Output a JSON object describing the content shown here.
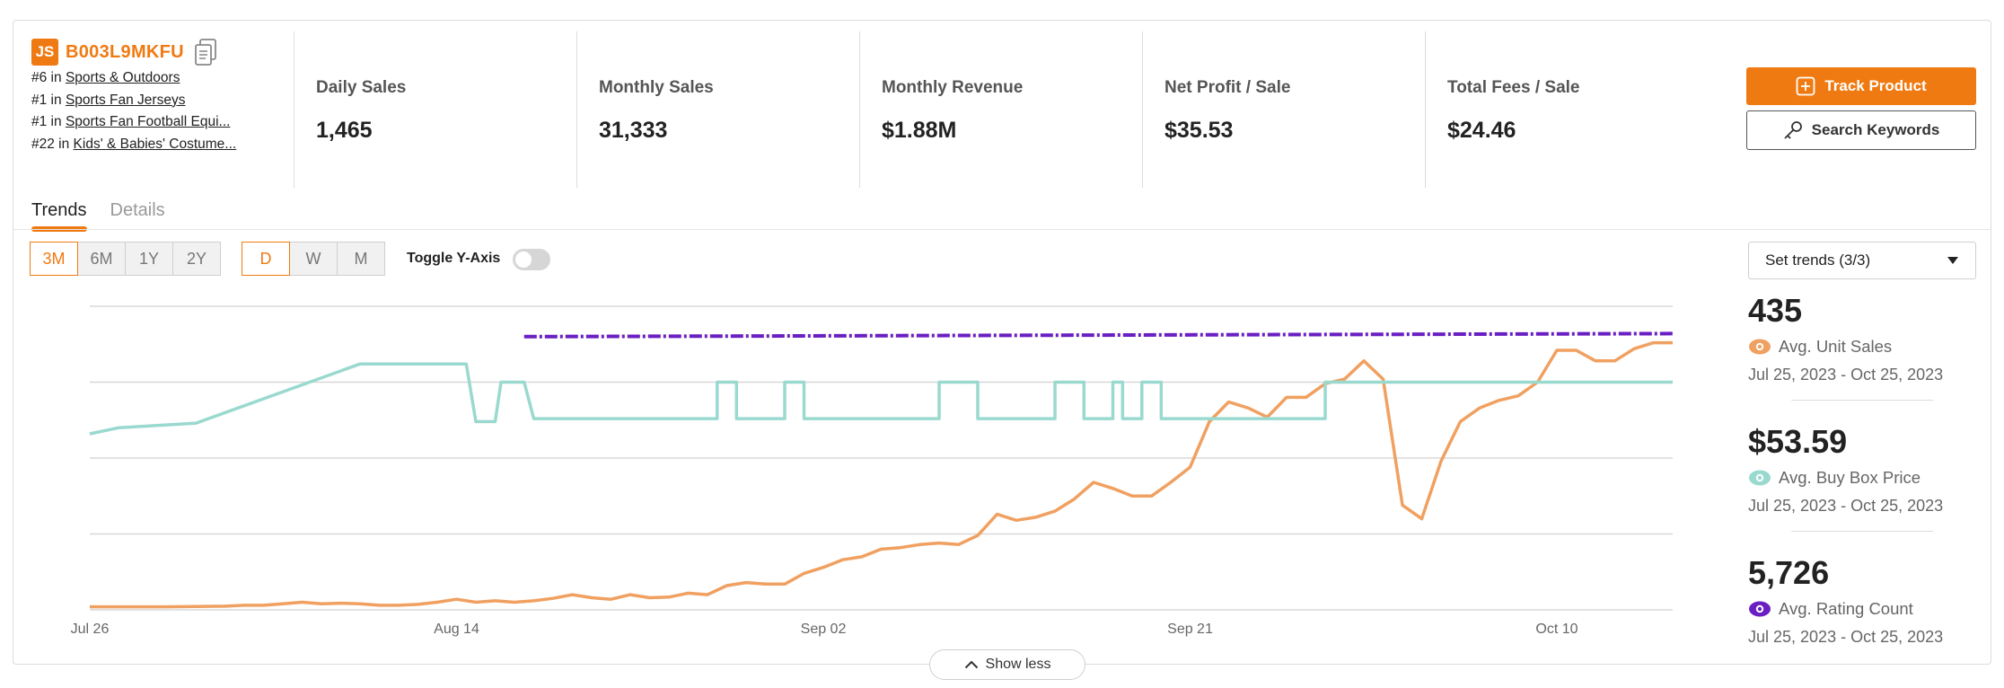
{
  "product": {
    "logo": "JS",
    "asin": "B003L9MKFU",
    "ranks": [
      {
        "prefix": "#6 in",
        "category": "Sports & Outdoors"
      },
      {
        "prefix": "#1 in",
        "category": "Sports Fan Jerseys"
      },
      {
        "prefix": "#1 in",
        "category": "Sports Fan Football Equi..."
      },
      {
        "prefix": "#22 in",
        "category": "Kids' & Babies' Costume..."
      }
    ]
  },
  "stats": [
    {
      "label": "Daily Sales",
      "value": "1,465"
    },
    {
      "label": "Monthly Sales",
      "value": "31,333"
    },
    {
      "label": "Monthly Revenue",
      "value": "$1.88M"
    },
    {
      "label": "Net Profit / Sale",
      "value": "$35.53"
    },
    {
      "label": "Total Fees / Sale",
      "value": "$24.46"
    }
  ],
  "actions": {
    "track": "Track Product",
    "search": "Search Keywords"
  },
  "tabs": [
    "Trends",
    "Details"
  ],
  "ranges": [
    "3M",
    "6M",
    "1Y",
    "2Y"
  ],
  "granularity": [
    "D",
    "W",
    "M"
  ],
  "toggle_label": "Toggle Y-Axis",
  "trend_select": "Set trends (3/3)",
  "metrics": [
    {
      "value": "435",
      "label": "Avg. Unit Sales",
      "range": "Jul 25, 2023 - Oct 25, 2023",
      "color": "#f0a060"
    },
    {
      "value": "$53.59",
      "label": "Avg. Buy Box Price",
      "range": "Jul 25, 2023 - Oct 25, 2023",
      "color": "#9ad9cf"
    },
    {
      "value": "5,726",
      "label": "Avg. Rating Count",
      "range": "Jul 25, 2023 - Oct 25, 2023",
      "color": "#6a1fc2"
    }
  ],
  "show_less": "Show less",
  "colors": {
    "accent": "#f07a12",
    "unit_sales": "#f0a060",
    "buy_box": "#9ad9cf",
    "rating": "#6a1fc2"
  },
  "chart_data": {
    "type": "line",
    "x_ticks": [
      "Jul 26",
      "Aug 14",
      "Sep 02",
      "Sep 21",
      "Oct 10"
    ],
    "series": [
      {
        "name": "Avg. Unit Sales",
        "color": "#f0a060",
        "style": "solid",
        "ylim": [
          0,
          1000
        ],
        "points": [
          [
            0,
            10
          ],
          [
            4,
            10
          ],
          [
            7,
            12
          ],
          [
            8,
            15
          ],
          [
            9,
            15
          ],
          [
            10,
            20
          ],
          [
            11,
            25
          ],
          [
            12,
            20
          ],
          [
            13,
            22
          ],
          [
            14,
            20
          ],
          [
            15,
            15
          ],
          [
            16,
            15
          ],
          [
            17,
            18
          ],
          [
            18,
            25
          ],
          [
            19,
            35
          ],
          [
            20,
            25
          ],
          [
            21,
            30
          ],
          [
            22,
            25
          ],
          [
            23,
            30
          ],
          [
            24,
            38
          ],
          [
            25,
            50
          ],
          [
            26,
            40
          ],
          [
            27,
            35
          ],
          [
            28,
            50
          ],
          [
            29,
            40
          ],
          [
            30,
            42
          ],
          [
            31,
            55
          ],
          [
            32,
            50
          ],
          [
            33,
            80
          ],
          [
            34,
            90
          ],
          [
            35,
            85
          ],
          [
            36,
            85
          ],
          [
            37,
            120
          ],
          [
            38,
            140
          ],
          [
            39,
            165
          ],
          [
            40,
            175
          ],
          [
            41,
            200
          ],
          [
            42,
            205
          ],
          [
            43,
            215
          ],
          [
            44,
            220
          ],
          [
            45,
            215
          ],
          [
            46,
            245
          ],
          [
            47,
            315
          ],
          [
            48,
            295
          ],
          [
            49,
            305
          ],
          [
            50,
            325
          ],
          [
            51,
            365
          ],
          [
            52,
            420
          ],
          [
            53,
            400
          ],
          [
            54,
            375
          ],
          [
            55,
            375
          ],
          [
            56,
            420
          ],
          [
            57,
            470
          ],
          [
            58,
            620
          ],
          [
            59,
            685
          ],
          [
            60,
            665
          ],
          [
            61,
            635
          ],
          [
            62,
            700
          ],
          [
            63,
            700
          ],
          [
            64,
            745
          ],
          [
            65,
            760
          ],
          [
            66,
            820
          ],
          [
            67,
            760
          ],
          [
            68,
            345
          ],
          [
            69,
            300
          ],
          [
            70,
            490
          ],
          [
            71,
            620
          ],
          [
            72,
            665
          ],
          [
            73,
            690
          ],
          [
            74,
            705
          ],
          [
            75,
            750
          ],
          [
            76,
            855
          ],
          [
            77,
            855
          ],
          [
            78,
            820
          ],
          [
            79,
            820
          ],
          [
            80,
            860
          ],
          [
            81,
            880
          ],
          [
            82,
            880
          ]
        ]
      },
      {
        "name": "Avg. Buy Box Price",
        "color": "#9ad9cf",
        "style": "step",
        "ylim": [
          0,
          100
        ],
        "points": [
          [
            0,
            58
          ],
          [
            1.5,
            60
          ],
          [
            5.5,
            61.5
          ],
          [
            14,
            81
          ],
          [
            19.5,
            81
          ],
          [
            20,
            62
          ],
          [
            21,
            62
          ],
          [
            21.3,
            75
          ],
          [
            22.5,
            75
          ],
          [
            23,
            63
          ],
          [
            32.5,
            63
          ],
          [
            32.5,
            75
          ],
          [
            33.5,
            75
          ],
          [
            33.5,
            63
          ],
          [
            36,
            63
          ],
          [
            36,
            75
          ],
          [
            37,
            75
          ],
          [
            37,
            63
          ],
          [
            44,
            63
          ],
          [
            44,
            75
          ],
          [
            46,
            75
          ],
          [
            46,
            63
          ],
          [
            50,
            63
          ],
          [
            50,
            75
          ],
          [
            51.5,
            75
          ],
          [
            51.5,
            63
          ],
          [
            53,
            63
          ],
          [
            53,
            75
          ],
          [
            53.5,
            75
          ],
          [
            53.5,
            63
          ],
          [
            54.5,
            63
          ],
          [
            54.5,
            75
          ],
          [
            55.5,
            75
          ],
          [
            55.5,
            63
          ],
          [
            64,
            63
          ],
          [
            64,
            75
          ],
          [
            82,
            75
          ]
        ]
      },
      {
        "name": "Avg. Rating Count",
        "color": "#6a1fc2",
        "style": "dotted",
        "ylim": [
          0,
          100
        ],
        "points": [
          [
            22.5,
            90
          ],
          [
            82,
            91
          ]
        ]
      }
    ]
  }
}
